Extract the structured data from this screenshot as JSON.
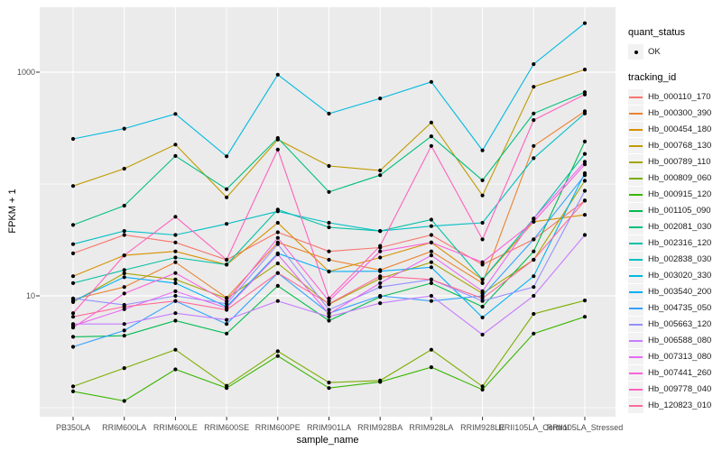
{
  "figure": {
    "x_axis_title": "sample_name",
    "y_axis_title": "FPKM + 1"
  },
  "legend": {
    "quant_status": {
      "title": "quant_status",
      "items": [
        {
          "label": "OK",
          "symbol": "black-point"
        }
      ]
    },
    "tracking": {
      "title": "tracking_id"
    }
  },
  "style_colors": {
    "panel_bg": "#EBEBEB",
    "gridline": "#FFFFFF",
    "tick_text": "#4D4D4D",
    "tick_mark": "#333333",
    "point": "#000000",
    "legend_key_bg": "#F2F2F2"
  },
  "chart_data": {
    "type": "line",
    "title": "",
    "xlabel": "sample_name",
    "ylabel": "FPKM + 1",
    "log_y": true,
    "ylim": [
      1,
      3600
    ],
    "grid": "on",
    "legend_position": "right",
    "quant_status_all_points": "OK",
    "categories": [
      "PB350LA",
      "RRIM600LA",
      "RRIM600LE",
      "RRIM600SE",
      "RRIM600PE",
      "RRIM901LA",
      "RRIM928BA",
      "RRIM928LA",
      "RRIM928LE",
      "RRII105LA_Control",
      "RRII105LA_Stressed"
    ],
    "y_tick_labels": [
      {
        "value": 1000,
        "label": "1000"
      },
      {
        "value": 10,
        "label": "10"
      }
    ],
    "y_gridlines_major": [
      10,
      1000
    ],
    "y_gridlines_minor": [
      1,
      100
    ],
    "series": [
      {
        "name": "Hb_000110_170",
        "color": "#F8766D",
        "values": [
          24,
          35,
          30,
          21,
          37,
          25,
          27,
          35,
          19,
          32,
          71
        ]
      },
      {
        "name": "Hb_000300_390",
        "color": "#EA8331",
        "values": [
          9.3,
          12,
          20,
          9.6,
          30,
          21,
          17,
          25,
          13,
          219,
          447
        ]
      },
      {
        "name": "Hb_000454_180",
        "color": "#D89000",
        "values": [
          15,
          23,
          25,
          19,
          45,
          16.5,
          22,
          30,
          14,
          46,
          53
        ]
      },
      {
        "name": "Hb_000768_130",
        "color": "#C09B00",
        "values": [
          96,
          137,
          225,
          76,
          250,
          145,
          132,
          355,
          79,
          740,
          1055
        ]
      },
      {
        "name": "Hb_000789_110",
        "color": "#A3A500",
        "values": [
          8.8,
          15.9,
          14,
          9.5,
          19.5,
          8.4,
          14.3,
          20,
          10.5,
          21,
          107
        ]
      },
      {
        "name": "Hb_000809_060",
        "color": "#7CAE00",
        "values": [
          1.55,
          2.26,
          3.3,
          1.57,
          3.2,
          1.68,
          1.75,
          3.3,
          1.55,
          6.9,
          9.1
        ]
      },
      {
        "name": "Hb_000915_120",
        "color": "#39B600",
        "values": [
          1.4,
          1.15,
          2.2,
          1.5,
          2.9,
          1.5,
          1.7,
          2.3,
          1.45,
          4.6,
          6.5
        ]
      },
      {
        "name": "Hb_001105_090",
        "color": "#00BB4E",
        "values": [
          4.3,
          4.4,
          6,
          4.6,
          12.3,
          6,
          9.8,
          13,
          8,
          25,
          240
        ]
      },
      {
        "name": "Hb_002081_030",
        "color": "#00BF7D",
        "values": [
          43,
          64,
          178,
          90,
          258,
          85,
          120,
          267,
          108,
          427,
          662
        ]
      },
      {
        "name": "Hb_002316_120",
        "color": "#00C1A3",
        "values": [
          13,
          17,
          22,
          19,
          59,
          41,
          38,
          48,
          14,
          49,
          186
        ]
      },
      {
        "name": "Hb_002838_030",
        "color": "#00BFC4",
        "values": [
          29,
          38,
          35,
          44,
          57,
          45,
          38,
          42,
          45,
          170,
          427
        ]
      },
      {
        "name": "Hb_003020_330",
        "color": "#00BAE0",
        "values": [
          253,
          313,
          423,
          177,
          950,
          426,
          583,
          818,
          200,
          1180,
          2740
        ]
      },
      {
        "name": "Hb_003540_200",
        "color": "#00B0F6",
        "values": [
          9,
          14.7,
          13,
          8,
          24,
          16.5,
          16.6,
          18,
          6.4,
          15,
          125
        ]
      },
      {
        "name": "Hb_004735_050",
        "color": "#35A2FF",
        "values": [
          3.5,
          4.9,
          9,
          5.6,
          16,
          7,
          10,
          9,
          10,
          32,
          120
        ]
      },
      {
        "name": "Hb_005663_120",
        "color": "#9590FF",
        "values": [
          9.5,
          8.3,
          10,
          8.5,
          29,
          7.5,
          12,
          14,
          9,
          12,
          87
        ]
      },
      {
        "name": "Hb_006588_080",
        "color": "#C77CFF",
        "values": [
          5.6,
          5.6,
          7,
          6.1,
          9,
          6.5,
          8.6,
          10,
          4.5,
          10,
          35
        ]
      },
      {
        "name": "Hb_007313_080",
        "color": "#E76BF3",
        "values": [
          5.4,
          7.6,
          11,
          7.8,
          23.5,
          6.9,
          13,
          23,
          11,
          49,
          158
        ]
      },
      {
        "name": "Hb_007441_260",
        "color": "#FA62DB",
        "values": [
          5.2,
          10.5,
          16,
          8.9,
          33,
          9,
          25,
          30,
          20,
          46,
          150
        ]
      },
      {
        "name": "Hb_009778_040",
        "color": "#FF62BC",
        "values": [
          7,
          23,
          51,
          21,
          203,
          9.5,
          28,
          219,
          32,
          373,
          631
        ]
      },
      {
        "name": "Hb_120823_010",
        "color": "#FF6A98",
        "values": [
          6.5,
          8,
          9,
          7.5,
          16,
          8.5,
          15,
          14,
          9.5,
          21,
          71
        ]
      }
    ]
  }
}
